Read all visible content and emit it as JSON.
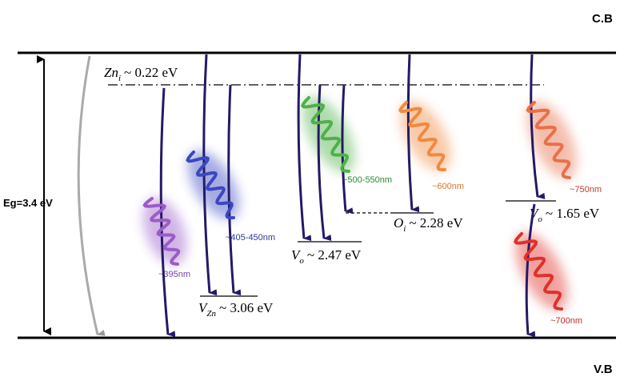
{
  "bands": {
    "conduction": "C.B",
    "valence": "V.B",
    "gap": "Eg=3.4 eV"
  },
  "levels": [
    {
      "symbol": "Zn",
      "sub": "i",
      "energy": "~ 0.22 eV"
    },
    {
      "symbol": "V",
      "sub": "Zn",
      "energy": "~ 3.06 eV"
    },
    {
      "symbol": "V",
      "sub": "o",
      "energy": "~ 2.47 eV"
    },
    {
      "symbol": "O",
      "sub": "i",
      "energy": "~ 2.28 eV"
    },
    {
      "symbol": "V",
      "sub": "o",
      "energy": "~ 1.65 eV"
    }
  ],
  "emissions": [
    "~395nm",
    "~405-450nm",
    "~500-550nm",
    "~600nm",
    "~750nm",
    "~700nm"
  ]
}
